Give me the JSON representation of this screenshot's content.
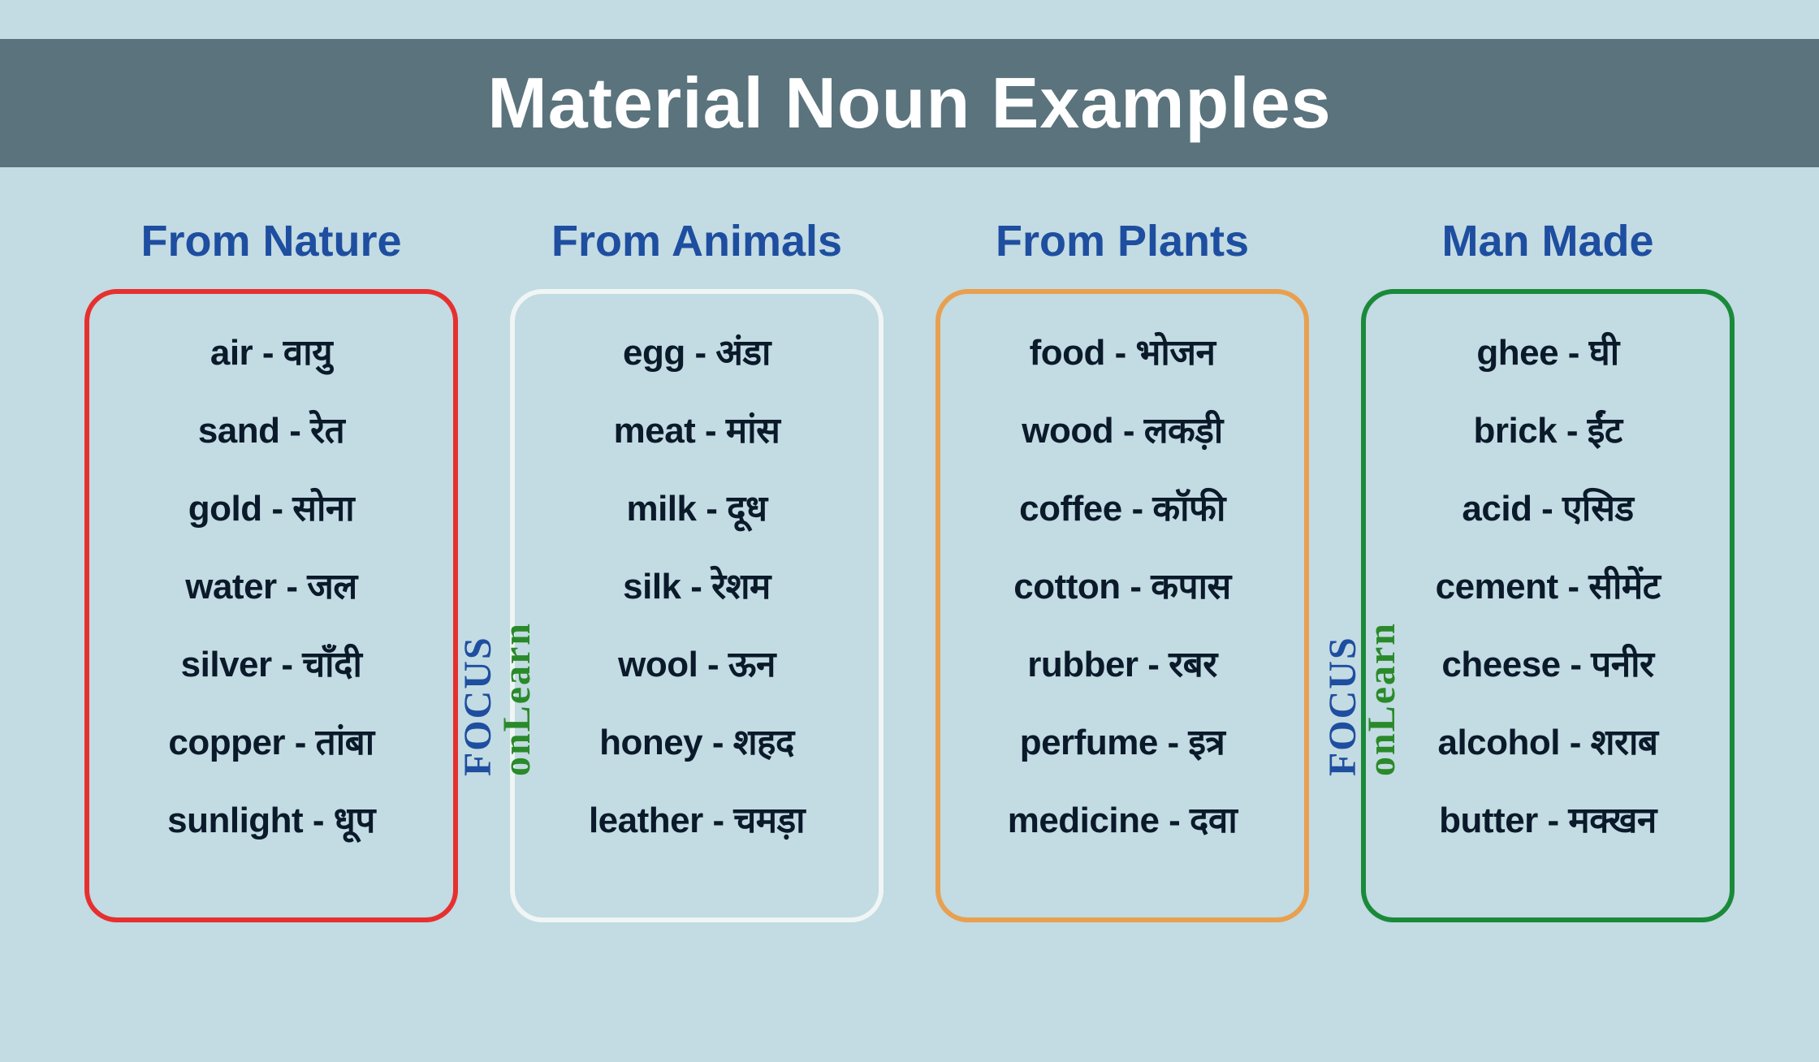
{
  "title": "Material Noun Examples",
  "background_color": "#c3dbe2",
  "title_bar_color": "#5a737d",
  "title_text_color": "#ffffff",
  "heading_color": "#1e4ea0",
  "item_text_color": "#0a1a2a",
  "title_fontsize": 88,
  "heading_fontsize": 54,
  "item_fontsize": 44,
  "columns": [
    {
      "heading": "From Nature",
      "border_color": "#e63030",
      "items": [
        "air - वायु",
        "sand - रेत",
        "gold - सोना",
        "water - जल",
        "silver - चाँदी",
        "copper - तांबा",
        "sunlight - धूप"
      ]
    },
    {
      "heading": "From Animals",
      "border_color": "#f0f5f5",
      "items": [
        "egg - अंडा",
        "meat - मांस",
        "milk - दूध",
        "silk - रेशम",
        "wool - ऊन",
        "honey - शहद",
        "leather - चमड़ा"
      ]
    },
    {
      "heading": "From Plants",
      "border_color": "#e8a050",
      "items": [
        "food - भोजन",
        "wood - लकड़ी",
        "coffee - कॉफी",
        "cotton - कपास",
        "rubber - रबर",
        "perfume - इत्र",
        "medicine - दवा"
      ]
    },
    {
      "heading": "Man Made",
      "border_color": "#1a8a3a",
      "items": [
        "ghee - घी",
        "brick - ईंट",
        "acid - एसिड",
        "cement - सीमेंट",
        "cheese - पनीर",
        "alcohol - शराब",
        "butter - मक्खन"
      ]
    }
  ],
  "watermark": {
    "top": "FOCUS",
    "bottom": "onLearn",
    "top_color": "#1e4ea0",
    "bottom_color": "#2a8a2a"
  }
}
